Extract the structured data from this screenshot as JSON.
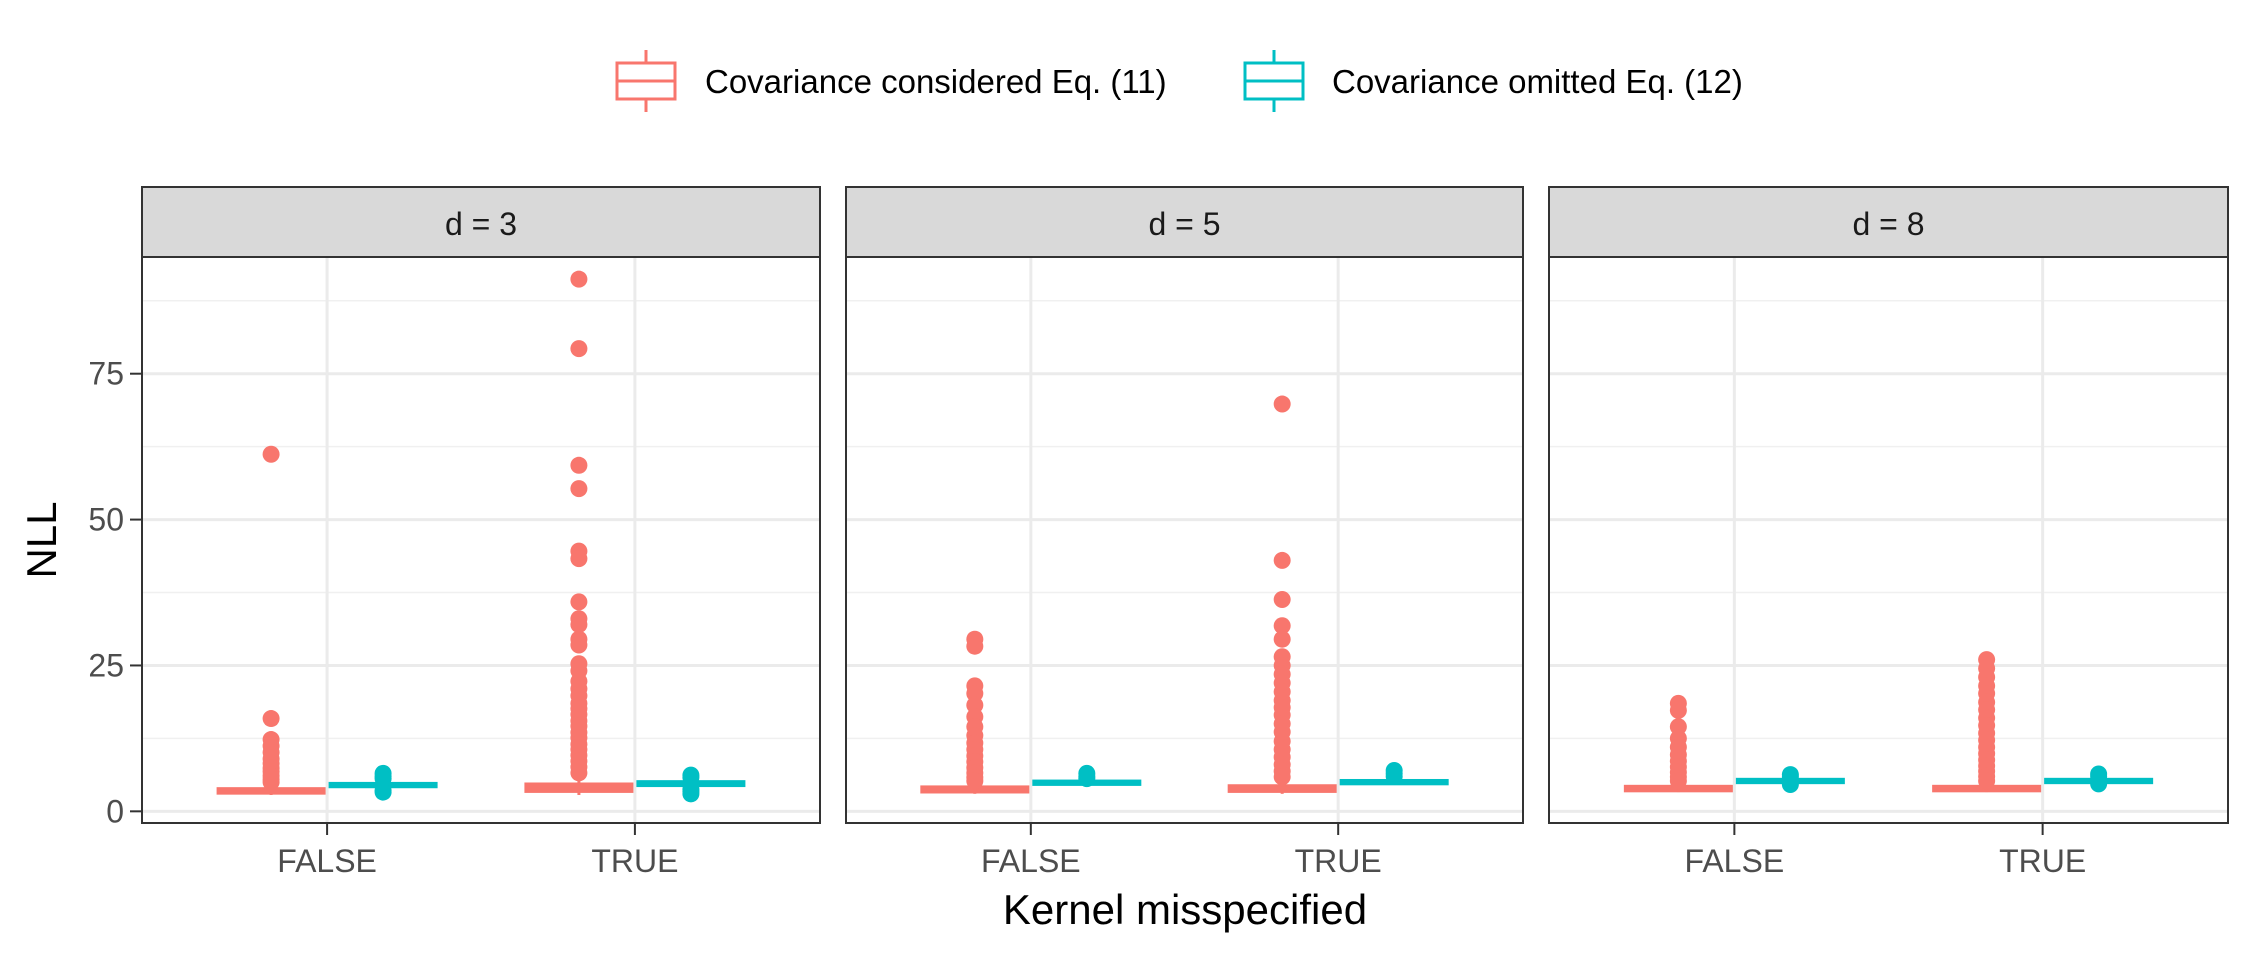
{
  "chart_data": {
    "type": "boxplot",
    "title": "",
    "xlabel": "Kernel misspecified",
    "ylabel": "NLL",
    "ylim": [
      -2,
      95
    ],
    "y_ticks": [
      0,
      25,
      50,
      75
    ],
    "categories": [
      "FALSE",
      "TRUE"
    ],
    "legend": {
      "position": "top",
      "entries": [
        {
          "name": "Covariance considered Eq. (11)",
          "color": "#F8766D"
        },
        {
          "name": "Covariance omitted Eq. (12)",
          "color": "#00BFC4"
        }
      ]
    },
    "panels": [
      {
        "label": "d = 3",
        "groups": [
          {
            "category": "FALSE",
            "series": "Covariance considered Eq. (11)",
            "box": {
              "q1": 3.2,
              "median": 3.5,
              "q3": 3.8,
              "whisker_low": 2.8,
              "whisker_high": 4.2
            },
            "outliers": [
              61.2,
              15.9,
              12.3,
              11.2,
              10.1,
              9.0,
              8.2,
              7.4,
              6.8,
              6.1,
              5.5,
              5.0
            ]
          },
          {
            "category": "FALSE",
            "series": "Covariance omitted Eq. (12)",
            "box": {
              "q1": 4.3,
              "median": 4.5,
              "q3": 4.7,
              "whisker_low": 4.0,
              "whisker_high": 5.0
            },
            "outliers": [
              6.5,
              6.0,
              5.6,
              3.6,
              3.3
            ]
          },
          {
            "category": "TRUE",
            "series": "Covariance considered Eq. (11)",
            "box": {
              "q1": 3.5,
              "median": 4.0,
              "q3": 4.6,
              "whisker_low": 2.8,
              "whisker_high": 5.5
            },
            "outliers": [
              91.2,
              79.3,
              59.3,
              55.3,
              44.6,
              43.3,
              35.9,
              33.0,
              32.0,
              29.5,
              28.5,
              25.3,
              24.1,
              22.3,
              21.0,
              19.8,
              18.5,
              17.6,
              16.6,
              15.5,
              14.6,
              13.5,
              12.6,
              11.5,
              10.6,
              9.6,
              8.6,
              7.6,
              6.6
            ]
          },
          {
            "category": "TRUE",
            "series": "Covariance omitted Eq. (12)",
            "box": {
              "q1": 4.5,
              "median": 4.8,
              "q3": 5.0,
              "whisker_low": 4.2,
              "whisker_high": 5.3
            },
            "outliers": [
              6.2,
              5.8,
              3.8,
              3.4,
              3.0
            ]
          }
        ]
      },
      {
        "label": "d = 5",
        "groups": [
          {
            "category": "FALSE",
            "series": "Covariance considered Eq. (11)",
            "box": {
              "q1": 3.4,
              "median": 3.8,
              "q3": 4.1,
              "whisker_low": 3.0,
              "whisker_high": 4.6
            },
            "outliers": [
              29.5,
              28.3,
              21.5,
              20.2,
              18.2,
              16.2,
              14.5,
              13.0,
              11.7,
              10.6,
              9.5,
              8.5,
              7.5,
              6.6,
              5.8,
              5.2
            ]
          },
          {
            "category": "FALSE",
            "series": "Covariance omitted Eq. (12)",
            "box": {
              "q1": 4.7,
              "median": 4.9,
              "q3": 5.1,
              "whisker_low": 4.5,
              "whisker_high": 5.3
            },
            "outliers": [
              6.5,
              6.0,
              5.6
            ]
          },
          {
            "category": "TRUE",
            "series": "Covariance considered Eq. (11)",
            "box": {
              "q1": 3.5,
              "median": 3.9,
              "q3": 4.3,
              "whisker_low": 3.0,
              "whisker_high": 4.8
            },
            "outliers": [
              69.8,
              43.0,
              36.3,
              31.8,
              29.5,
              26.5,
              25.0,
              23.5,
              22.0,
              20.5,
              19.0,
              17.8,
              16.5,
              15.0,
              13.6,
              12.0,
              10.6,
              9.3,
              8.0,
              6.9,
              5.9
            ]
          },
          {
            "category": "TRUE",
            "series": "Covariance omitted Eq. (12)",
            "box": {
              "q1": 4.8,
              "median": 5.0,
              "q3": 5.2,
              "whisker_low": 4.6,
              "whisker_high": 5.4
            },
            "outliers": [
              7.0,
              6.5,
              6.0
            ]
          }
        ]
      },
      {
        "label": "d = 8",
        "groups": [
          {
            "category": "FALSE",
            "series": "Covariance considered Eq. (11)",
            "box": {
              "q1": 3.6,
              "median": 3.9,
              "q3": 4.2,
              "whisker_low": 3.3,
              "whisker_high": 4.6
            },
            "outliers": [
              18.5,
              17.3,
              14.5,
              12.5,
              11.0,
              9.7,
              8.6,
              7.6,
              6.7,
              5.9,
              5.2
            ]
          },
          {
            "category": "FALSE",
            "series": "Covariance omitted Eq. (12)",
            "box": {
              "q1": 5.0,
              "median": 5.2,
              "q3": 5.4,
              "whisker_low": 4.8,
              "whisker_high": 5.6
            },
            "outliers": [
              6.3,
              5.9,
              4.6
            ]
          },
          {
            "category": "TRUE",
            "series": "Covariance considered Eq. (11)",
            "box": {
              "q1": 3.6,
              "median": 3.9,
              "q3": 4.2,
              "whisker_low": 3.3,
              "whisker_high": 4.6
            },
            "outliers": [
              26.0,
              24.5,
              23.0,
              21.5,
              20.2,
              18.7,
              17.4,
              16.0,
              14.7,
              13.4,
              12.2,
              11.0,
              9.9,
              8.8,
              7.8,
              6.9,
              6.0,
              5.2
            ]
          },
          {
            "category": "TRUE",
            "series": "Covariance omitted Eq. (12)",
            "box": {
              "q1": 5.0,
              "median": 5.2,
              "q3": 5.4,
              "whisker_low": 4.8,
              "whisker_high": 5.6
            },
            "outliers": [
              6.4,
              6.0,
              4.7
            ]
          }
        ]
      }
    ]
  }
}
